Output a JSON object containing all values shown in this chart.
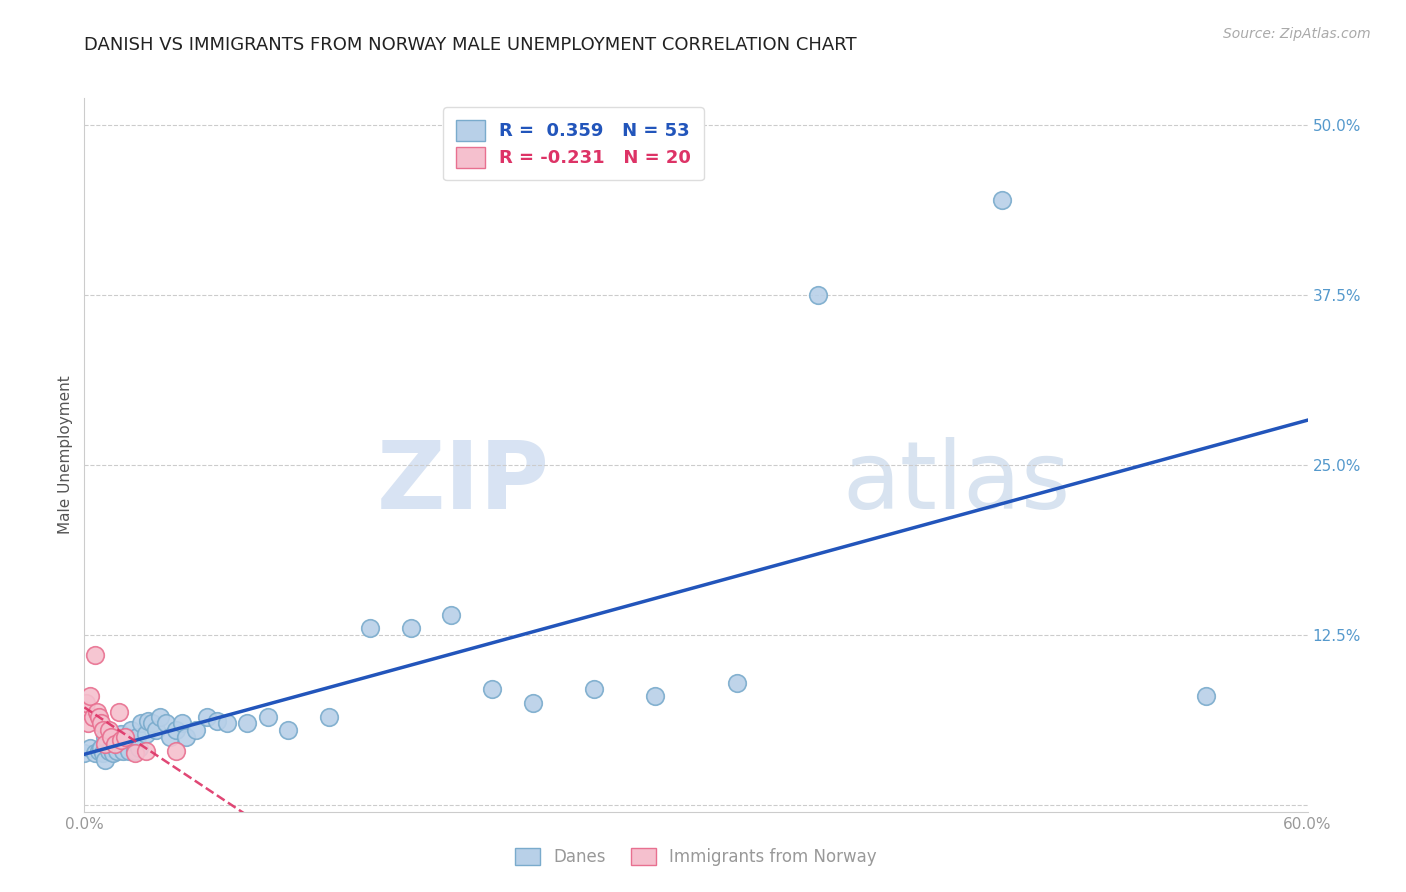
{
  "title": "DANISH VS IMMIGRANTS FROM NORWAY MALE UNEMPLOYMENT CORRELATION CHART",
  "source": "Source: ZipAtlas.com",
  "ylabel": "Male Unemployment",
  "xlim": [
    0.0,
    0.6
  ],
  "ylim": [
    -0.005,
    0.52
  ],
  "xticks": [
    0.0,
    0.1,
    0.2,
    0.3,
    0.4,
    0.5,
    0.6
  ],
  "xtick_labels": [
    "0.0%",
    "",
    "",
    "",
    "",
    "",
    "60.0%"
  ],
  "yticks": [
    0.0,
    0.125,
    0.25,
    0.375,
    0.5
  ],
  "ytick_labels": [
    "",
    "12.5%",
    "25.0%",
    "37.5%",
    "50.0%"
  ],
  "background_color": "#ffffff",
  "grid_color": "#cccccc",
  "danes_color": "#b8d0e8",
  "danes_edge_color": "#7aabcc",
  "norway_color": "#f5c0ce",
  "norway_edge_color": "#e87090",
  "danes_line_color": "#2255bb",
  "norway_line_color": "#dd3366",
  "danes_R": 0.359,
  "danes_N": 53,
  "norway_R": -0.231,
  "norway_N": 20,
  "legend_label_danes": "Danes",
  "legend_label_norway": "Immigrants from Norway",
  "watermark_zip": "ZIP",
  "watermark_atlas": "atlas",
  "danes_x": [
    0.0,
    0.003,
    0.005,
    0.007,
    0.008,
    0.009,
    0.01,
    0.01,
    0.012,
    0.013,
    0.014,
    0.015,
    0.016,
    0.017,
    0.018,
    0.019,
    0.02,
    0.021,
    0.022,
    0.023,
    0.025,
    0.026,
    0.027,
    0.028,
    0.03,
    0.031,
    0.033,
    0.035,
    0.037,
    0.04,
    0.042,
    0.045,
    0.048,
    0.05,
    0.055,
    0.06,
    0.065,
    0.07,
    0.08,
    0.09,
    0.1,
    0.12,
    0.14,
    0.16,
    0.18,
    0.2,
    0.22,
    0.25,
    0.28,
    0.32,
    0.36,
    0.45,
    0.55
  ],
  "danes_y": [
    0.038,
    0.042,
    0.038,
    0.04,
    0.042,
    0.038,
    0.033,
    0.05,
    0.04,
    0.042,
    0.038,
    0.045,
    0.04,
    0.048,
    0.052,
    0.04,
    0.048,
    0.05,
    0.04,
    0.055,
    0.04,
    0.05,
    0.042,
    0.06,
    0.052,
    0.062,
    0.06,
    0.055,
    0.065,
    0.06,
    0.05,
    0.055,
    0.06,
    0.05,
    0.055,
    0.065,
    0.062,
    0.06,
    0.06,
    0.065,
    0.055,
    0.065,
    0.13,
    0.13,
    0.14,
    0.085,
    0.075,
    0.085,
    0.08,
    0.09,
    0.375,
    0.445,
    0.08
  ],
  "norway_x": [
    0.0,
    0.001,
    0.002,
    0.003,
    0.004,
    0.005,
    0.006,
    0.007,
    0.008,
    0.009,
    0.01,
    0.012,
    0.013,
    0.015,
    0.017,
    0.018,
    0.02,
    0.025,
    0.03,
    0.045
  ],
  "norway_y": [
    0.07,
    0.075,
    0.06,
    0.08,
    0.065,
    0.11,
    0.068,
    0.065,
    0.06,
    0.055,
    0.045,
    0.055,
    0.05,
    0.045,
    0.068,
    0.048,
    0.05,
    0.038,
    0.04,
    0.04
  ]
}
